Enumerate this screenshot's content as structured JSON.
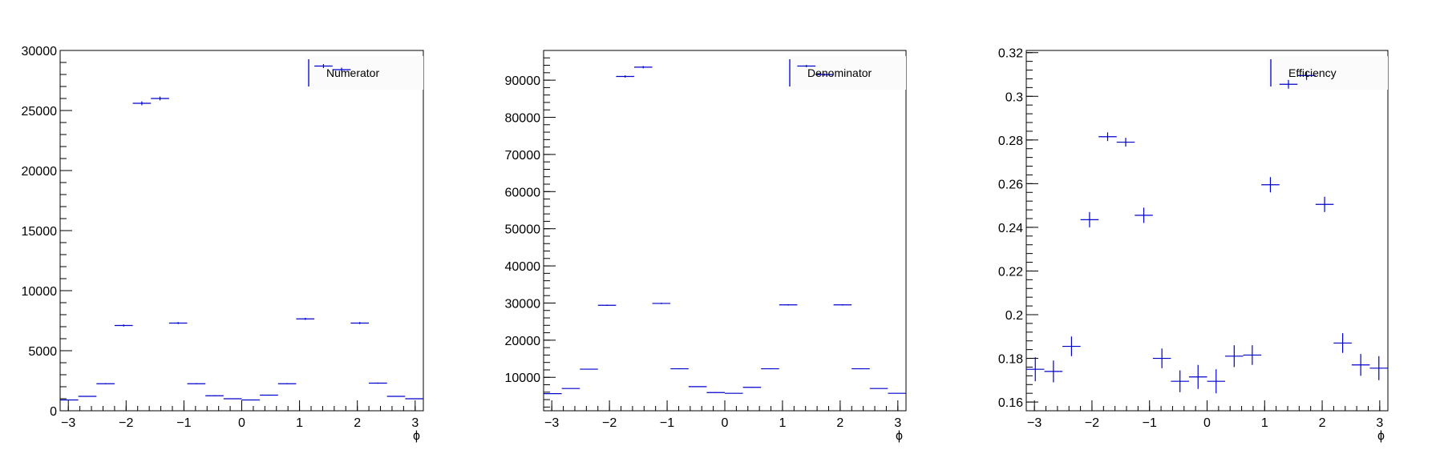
{
  "chart_data": [
    {
      "type": "scatter",
      "xlabel": "ϕ",
      "ylabel": "",
      "xlim": [
        -3.1416,
        3.1416
      ],
      "ylim": [
        0,
        30000
      ],
      "x_ticks": [
        -3,
        -2,
        -1,
        0,
        1,
        2,
        3
      ],
      "y_ticks": [
        0,
        5000,
        10000,
        15000,
        20000,
        25000,
        30000
      ],
      "series": [
        {
          "name": "Numerator",
          "color": "#0000cc",
          "bin_half_width": 0.157,
          "x": [
            -2.985,
            -2.67,
            -2.356,
            -2.042,
            -1.728,
            -1.414,
            -1.1,
            -0.785,
            -0.471,
            -0.157,
            0.157,
            0.471,
            0.785,
            1.1,
            1.414,
            1.728,
            2.042,
            2.356,
            2.67,
            2.985
          ],
          "y": [
            900,
            1200,
            2250,
            7100,
            25600,
            26000,
            7300,
            2250,
            1250,
            1000,
            900,
            1300,
            2250,
            7650,
            28700,
            28400,
            7300,
            2300,
            1200,
            1000
          ],
          "yerr": [
            30,
            35,
            47,
            84,
            160,
            161,
            85,
            47,
            35,
            32,
            30,
            36,
            47,
            87,
            169,
            169,
            85,
            48,
            35,
            32
          ]
        }
      ]
    },
    {
      "type": "scatter",
      "xlabel": "ϕ",
      "ylabel": "",
      "xlim": [
        -3.1416,
        3.1416
      ],
      "ylim": [
        1000,
        98000
      ],
      "x_ticks": [
        -3,
        -2,
        -1,
        0,
        1,
        2,
        3
      ],
      "y_ticks": [
        10000,
        20000,
        30000,
        40000,
        50000,
        60000,
        70000,
        80000,
        90000
      ],
      "series": [
        {
          "name": "Denominator",
          "color": "#0000cc",
          "bin_half_width": 0.157,
          "x": [
            -2.985,
            -2.67,
            -2.356,
            -2.042,
            -1.728,
            -1.414,
            -1.1,
            -0.785,
            -0.471,
            -0.157,
            0.157,
            0.471,
            0.785,
            1.1,
            1.414,
            1.728,
            2.042,
            2.356,
            2.67,
            2.985
          ],
          "y": [
            5600,
            7000,
            12200,
            29400,
            91000,
            93500,
            29900,
            12300,
            7500,
            5900,
            5700,
            7300,
            12300,
            29500,
            93800,
            91500,
            29500,
            12300,
            7000,
            5700
          ],
          "yerr": [
            75,
            84,
            110,
            171,
            302,
            306,
            173,
            111,
            87,
            77,
            75,
            85,
            111,
            172,
            306,
            302,
            172,
            111,
            84,
            75
          ]
        }
      ]
    },
    {
      "type": "scatter",
      "xlabel": "ϕ",
      "ylabel": "",
      "xlim": [
        -3.1416,
        3.1416
      ],
      "ylim": [
        0.156,
        0.321
      ],
      "x_ticks": [
        -3,
        -2,
        -1,
        0,
        1,
        2,
        3
      ],
      "y_ticks": [
        0.16,
        0.18,
        0.2,
        0.22,
        0.24,
        0.26,
        0.28,
        0.3,
        0.32
      ],
      "series": [
        {
          "name": "Efficiency",
          "color": "#0000cc",
          "bin_half_width": 0.157,
          "x": [
            -2.985,
            -2.67,
            -2.356,
            -2.042,
            -1.728,
            -1.414,
            -1.1,
            -0.785,
            -0.471,
            -0.157,
            0.157,
            0.471,
            0.785,
            1.1,
            1.414,
            1.728,
            2.042,
            2.356,
            2.67,
            2.985
          ],
          "y": [
            0.175,
            0.174,
            0.1855,
            0.2435,
            0.2815,
            0.279,
            0.2455,
            0.18,
            0.1695,
            0.1715,
            0.1695,
            0.181,
            0.1815,
            0.2595,
            0.3055,
            0.3095,
            0.2505,
            0.187,
            0.177,
            0.1755
          ],
          "yerr": [
            0.0055,
            0.005,
            0.0045,
            0.0035,
            0.002,
            0.002,
            0.0035,
            0.0045,
            0.005,
            0.0055,
            0.0055,
            0.005,
            0.0045,
            0.0035,
            0.002,
            0.002,
            0.0035,
            0.0045,
            0.005,
            0.0055
          ]
        }
      ]
    }
  ]
}
